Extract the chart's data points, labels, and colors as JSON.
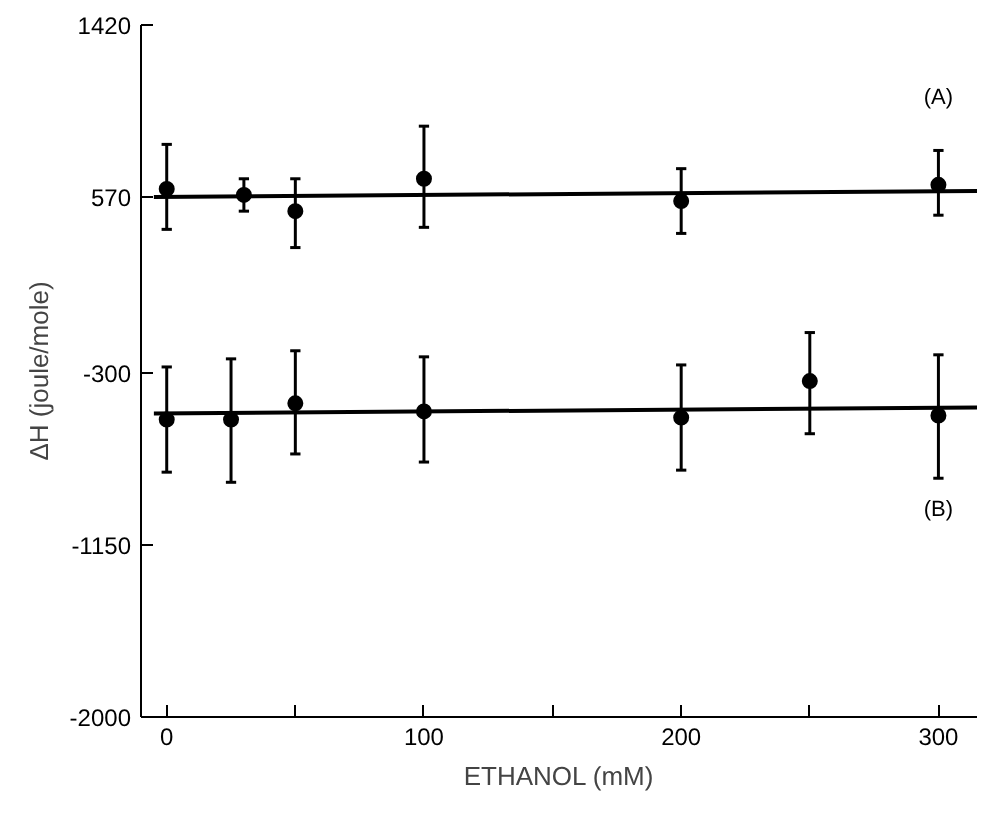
{
  "chart_data": {
    "type": "scatter",
    "xlabel": "ETHANOL (mM)",
    "ylabel": "ΔH (joule/mole)",
    "xlim": [
      -10,
      315
    ],
    "ylim": [
      -2000,
      1420
    ],
    "xticks": [
      0,
      {
        "value": 50,
        "label": null
      },
      100,
      {
        "value": 150,
        "label": null
      },
      200,
      {
        "value": 250,
        "label": null
      },
      300
    ],
    "yticks": [
      -2000,
      -1150,
      -300,
      570,
      1420
    ],
    "grid": false,
    "series": [
      {
        "color": "#000000",
        "marker": "circle",
        "x": [
          0,
          30,
          50,
          100,
          200,
          300
        ],
        "values": [
          610,
          580,
          500,
          660,
          550,
          630
        ],
        "errors": [
          [
            410,
            830
          ],
          [
            500,
            660
          ],
          [
            320,
            660
          ],
          [
            420,
            920
          ],
          [
            390,
            710
          ],
          [
            480,
            800
          ]
        ]
      },
      {
        "color": "#000000",
        "marker": "circle",
        "x": [
          0,
          25,
          50,
          100,
          200,
          250,
          300
        ],
        "values": [
          -530,
          -530,
          -450,
          -490,
          -520,
          -340,
          -510
        ],
        "errors": [
          [
            -790,
            -270
          ],
          [
            -840,
            -230
          ],
          [
            -700,
            -190
          ],
          [
            -740,
            -220
          ],
          [
            -780,
            -260
          ],
          [
            -600,
            -100
          ],
          [
            -820,
            -210
          ]
        ]
      },
      {
        "type": "line",
        "color": "#000000",
        "x": [
          -5,
          315
        ],
        "values": [
          570,
          600
        ],
        "line_style": "solid"
      },
      {
        "type": "line",
        "color": "#000000",
        "x": [
          -5,
          315
        ],
        "values": [
          -500,
          -470
        ],
        "line_style": "solid"
      }
    ],
    "annotations": [
      "(A)",
      "(B)"
    ]
  }
}
